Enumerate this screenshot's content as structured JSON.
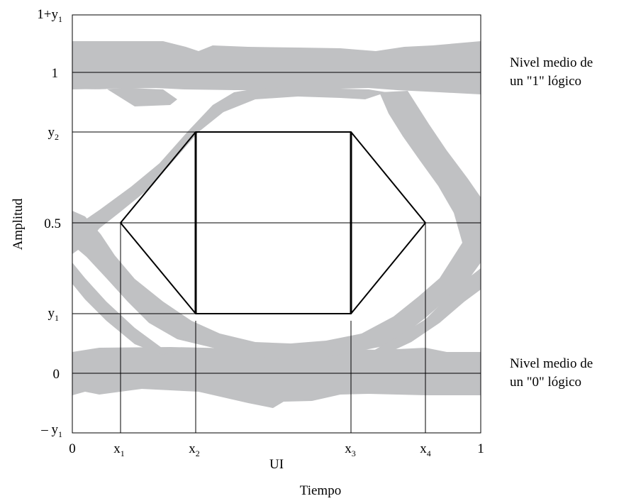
{
  "y_ticks": {
    "top": {
      "main": "1+y",
      "sub": "1"
    },
    "one": "1",
    "y2": {
      "main": "y",
      "sub": "2"
    },
    "half": "0.5",
    "y1": {
      "main": "y",
      "sub": "1"
    },
    "zero": "0",
    "neg_y1": {
      "main": "– y",
      "sub": "1"
    }
  },
  "x_ticks": {
    "zero": "0",
    "x1": {
      "main": "x",
      "sub": "1"
    },
    "x2": {
      "main": "x",
      "sub": "2"
    },
    "x3": {
      "main": "x",
      "sub": "3"
    },
    "x4": {
      "main": "x",
      "sub": "4"
    },
    "one": "1"
  },
  "axis_label_x": "UI",
  "axis_label_y": "Amplitud",
  "time_label": "Tiempo",
  "annotations": {
    "logic_one": [
      "Nivel medio de",
      "un \"1\" lógico"
    ],
    "logic_zero": [
      "Nivel medio de",
      "un \"0\" lógico"
    ]
  },
  "colors": {
    "eye_band": "#c0c1c3",
    "mask_outline": "#000000",
    "frame": "#000000"
  }
}
